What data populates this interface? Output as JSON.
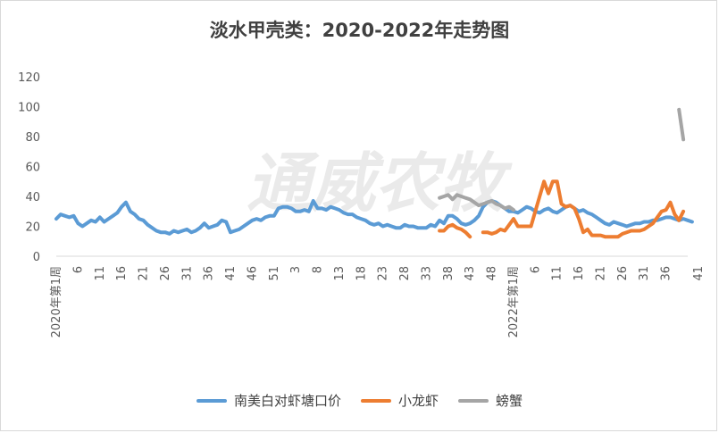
{
  "chart_data": {
    "type": "line",
    "title": "淡水甲壳类：2020-2022年走势图",
    "watermark": "通威农牧",
    "xlabel": "",
    "ylabel": "",
    "ylim": [
      0,
      120
    ],
    "yticks": [
      "0",
      "20",
      "40",
      "60",
      "80",
      "100",
      "120"
    ],
    "xticks": [
      "2020年第1周",
      "6",
      "11",
      "16",
      "21",
      "26",
      "31",
      "36",
      "41",
      "46",
      "51",
      "3",
      "8",
      "13",
      "18",
      "23",
      "28",
      "33",
      "38",
      "43",
      "48",
      "2022年第1周",
      "6",
      "11",
      "16",
      "21",
      "26",
      "31",
      "36",
      "41"
    ],
    "grid": false,
    "legend_position": "bottom",
    "series": [
      {
        "name": "南美白对虾塘口价",
        "color": "#5b9bd5",
        "start_index": 0,
        "values": [
          25,
          28,
          27,
          26,
          27,
          22,
          20,
          22,
          24,
          23,
          26,
          23,
          25,
          27,
          29,
          33,
          36,
          30,
          28,
          25,
          24,
          21,
          19,
          17,
          16,
          16,
          15,
          17,
          16,
          17,
          18,
          16,
          17,
          19,
          22,
          19,
          20,
          21,
          24,
          23,
          16,
          17,
          18,
          20,
          22,
          24,
          25,
          24,
          26,
          27,
          27,
          32,
          33,
          33,
          32,
          30,
          30,
          31,
          30,
          37,
          32,
          32,
          31,
          33,
          32,
          31,
          29,
          28,
          28,
          26,
          25,
          24,
          22,
          21,
          22,
          20,
          21,
          20,
          19,
          19,
          21,
          20,
          20,
          19,
          19,
          19,
          21,
          20,
          24,
          22,
          27,
          27,
          25,
          22,
          21,
          22,
          24,
          27,
          33,
          36,
          37,
          36,
          34,
          32,
          30,
          30,
          29,
          31,
          33,
          32,
          30,
          29,
          31,
          32,
          30,
          29,
          31,
          33,
          34,
          32,
          30,
          31,
          29,
          28,
          26,
          24,
          22,
          21,
          23,
          22,
          21,
          20,
          21,
          22,
          22,
          23,
          23,
          24,
          24,
          25,
          26,
          26,
          25,
          24,
          25,
          24,
          23
        ]
      },
      {
        "name": "小龙虾",
        "color": "#ed7d31",
        "start_index": 88,
        "values": [
          17,
          17,
          20,
          21,
          19,
          18,
          16,
          13,
          null,
          null,
          16,
          16,
          15,
          16,
          18,
          17,
          21,
          25,
          20,
          20,
          20,
          20,
          30,
          40,
          50,
          42,
          50,
          50,
          35,
          33,
          34,
          32,
          25,
          16,
          18,
          14,
          14,
          14,
          13,
          13,
          13,
          13,
          15,
          16,
          17,
          17,
          17,
          18,
          20,
          22,
          26,
          30,
          31,
          36,
          28,
          24,
          30
        ]
      },
      {
        "name": "螃蟹",
        "color": "#a5a5a5",
        "start_index": 88,
        "values": [
          39,
          40,
          41,
          38,
          41,
          40,
          39,
          38,
          36,
          34,
          35,
          36,
          37,
          35,
          34,
          32,
          33,
          31,
          null,
          null,
          null,
          null,
          null,
          null,
          null,
          null,
          null,
          null,
          null,
          null,
          null,
          null,
          null,
          null,
          null,
          null,
          null,
          null,
          null,
          null,
          null,
          null,
          null,
          null,
          null,
          null,
          null,
          null,
          null,
          null,
          null,
          null,
          null,
          null,
          null,
          98,
          78
        ]
      }
    ]
  }
}
